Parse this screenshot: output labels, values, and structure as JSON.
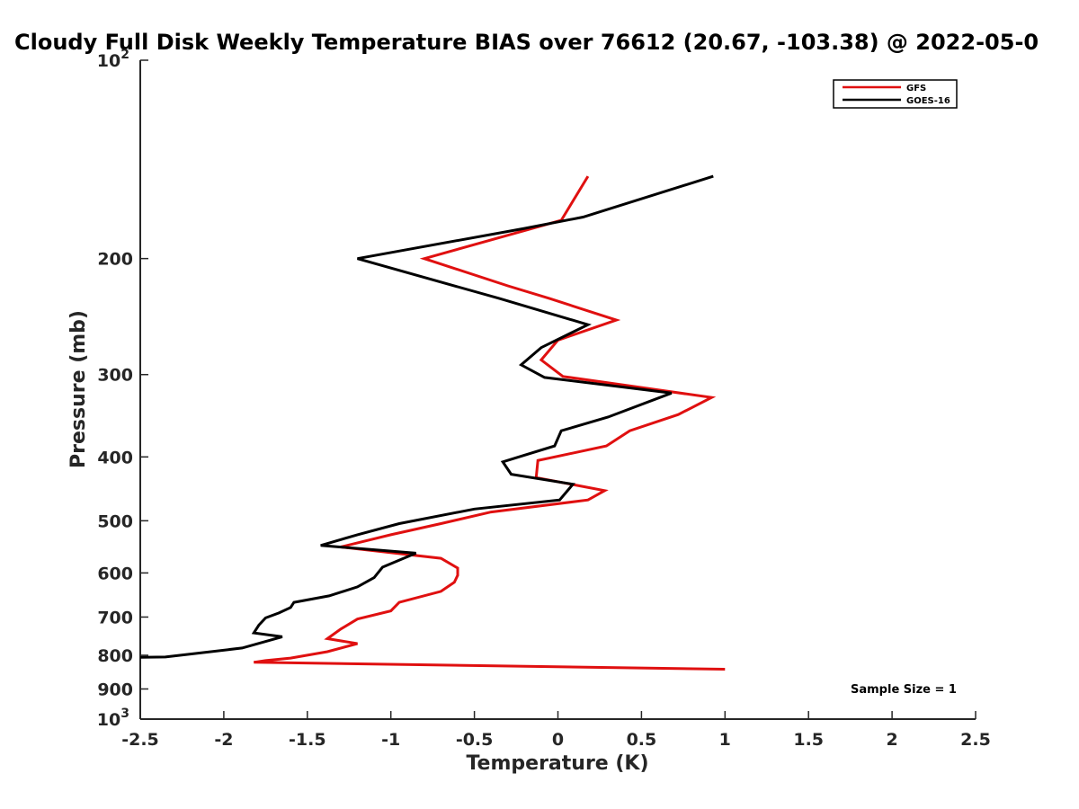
{
  "chart_data": {
    "type": "line",
    "title": "Cloudy Full Disk Weekly Temperature BIAS over 76612 (20.67, -103.38) @ 2022-05-0",
    "xlabel": "Temperature (K)",
    "ylabel": "Pressure (mb)",
    "xlim": [
      -2.5,
      2.5
    ],
    "ylim": [
      100,
      1000
    ],
    "y_scale": "log",
    "y_reversed": true,
    "grid": false,
    "legend_position": "top-right",
    "x_ticks": [
      "-2.5",
      "-2",
      "-1.5",
      "-1",
      "-0.5",
      "0",
      "0.5",
      "1",
      "1.5",
      "2",
      "2.5"
    ],
    "x_tick_values": [
      -2.5,
      -2,
      -1.5,
      -1,
      -0.5,
      0,
      0.5,
      1,
      1.5,
      2,
      2.5
    ],
    "y_ticks": [
      {
        "value": 100,
        "base": "10",
        "exp": "2"
      },
      {
        "value": 200,
        "label": "200"
      },
      {
        "value": 300,
        "label": "300"
      },
      {
        "value": 400,
        "label": "400"
      },
      {
        "value": 500,
        "label": "500"
      },
      {
        "value": 600,
        "label": "600"
      },
      {
        "value": 700,
        "label": "700"
      },
      {
        "value": 800,
        "label": "800"
      },
      {
        "value": 900,
        "label": "900"
      },
      {
        "value": 1000,
        "base": "10",
        "exp": "3"
      }
    ],
    "annotation": "Sample Size = 1",
    "series": [
      {
        "name": "GFS",
        "color": "#e01010",
        "points": [
          [
            0.18,
            150
          ],
          [
            0.02,
            175
          ],
          [
            -0.8,
            200
          ],
          [
            -0.3,
            220
          ],
          [
            -0.05,
            230
          ],
          [
            0.35,
            248
          ],
          [
            0,
            266
          ],
          [
            -0.1,
            285
          ],
          [
            0.03,
            302
          ],
          [
            0.92,
            325
          ],
          [
            0.72,
            345
          ],
          [
            0.43,
            365
          ],
          [
            0.29,
            385
          ],
          [
            -0.12,
            405
          ],
          [
            -0.13,
            430
          ],
          [
            0.28,
            450
          ],
          [
            0.18,
            465
          ],
          [
            -0.4,
            485
          ],
          [
            -0.7,
            505
          ],
          [
            -1.0,
            525
          ],
          [
            -1.3,
            548
          ],
          [
            -0.7,
            570
          ],
          [
            -0.6,
            590
          ],
          [
            -0.6,
            605
          ],
          [
            -0.62,
            620
          ],
          [
            -0.7,
            640
          ],
          [
            -0.95,
            665
          ],
          [
            -1.0,
            685
          ],
          [
            -1.2,
            705
          ],
          [
            -1.3,
            730
          ],
          [
            -1.38,
            755
          ],
          [
            -1.2,
            768
          ],
          [
            -1.38,
            790
          ],
          [
            -1.6,
            808
          ],
          [
            -1.75,
            815
          ],
          [
            -1.82,
            820
          ],
          [
            1.0,
            840
          ]
        ]
      },
      {
        "name": "GOES-16",
        "color": "#000000",
        "points": [
          [
            0.93,
            150
          ],
          [
            0.15,
            173
          ],
          [
            -0.2,
            180
          ],
          [
            -1.2,
            200
          ],
          [
            -0.35,
            230
          ],
          [
            0.18,
            252
          ],
          [
            -0.1,
            273
          ],
          [
            -0.22,
            290
          ],
          [
            -0.08,
            303
          ],
          [
            0.68,
            320
          ],
          [
            0.3,
            348
          ],
          [
            0.02,
            365
          ],
          [
            -0.02,
            385
          ],
          [
            -0.33,
            407
          ],
          [
            -0.28,
            425
          ],
          [
            0.09,
            440
          ],
          [
            0.01,
            465
          ],
          [
            -0.5,
            480
          ],
          [
            -0.95,
            505
          ],
          [
            -1.2,
            525
          ],
          [
            -1.42,
            545
          ],
          [
            -0.85,
            560
          ],
          [
            -1.05,
            588
          ],
          [
            -1.1,
            610
          ],
          [
            -1.2,
            630
          ],
          [
            -1.37,
            650
          ],
          [
            -1.58,
            665
          ],
          [
            -1.6,
            677
          ],
          [
            -1.67,
            690
          ],
          [
            -1.75,
            702
          ],
          [
            -1.79,
            720
          ],
          [
            -1.82,
            740
          ],
          [
            -1.65,
            750
          ],
          [
            -1.89,
            780
          ],
          [
            -2.35,
            805
          ],
          [
            -2.5,
            806
          ]
        ]
      }
    ]
  }
}
